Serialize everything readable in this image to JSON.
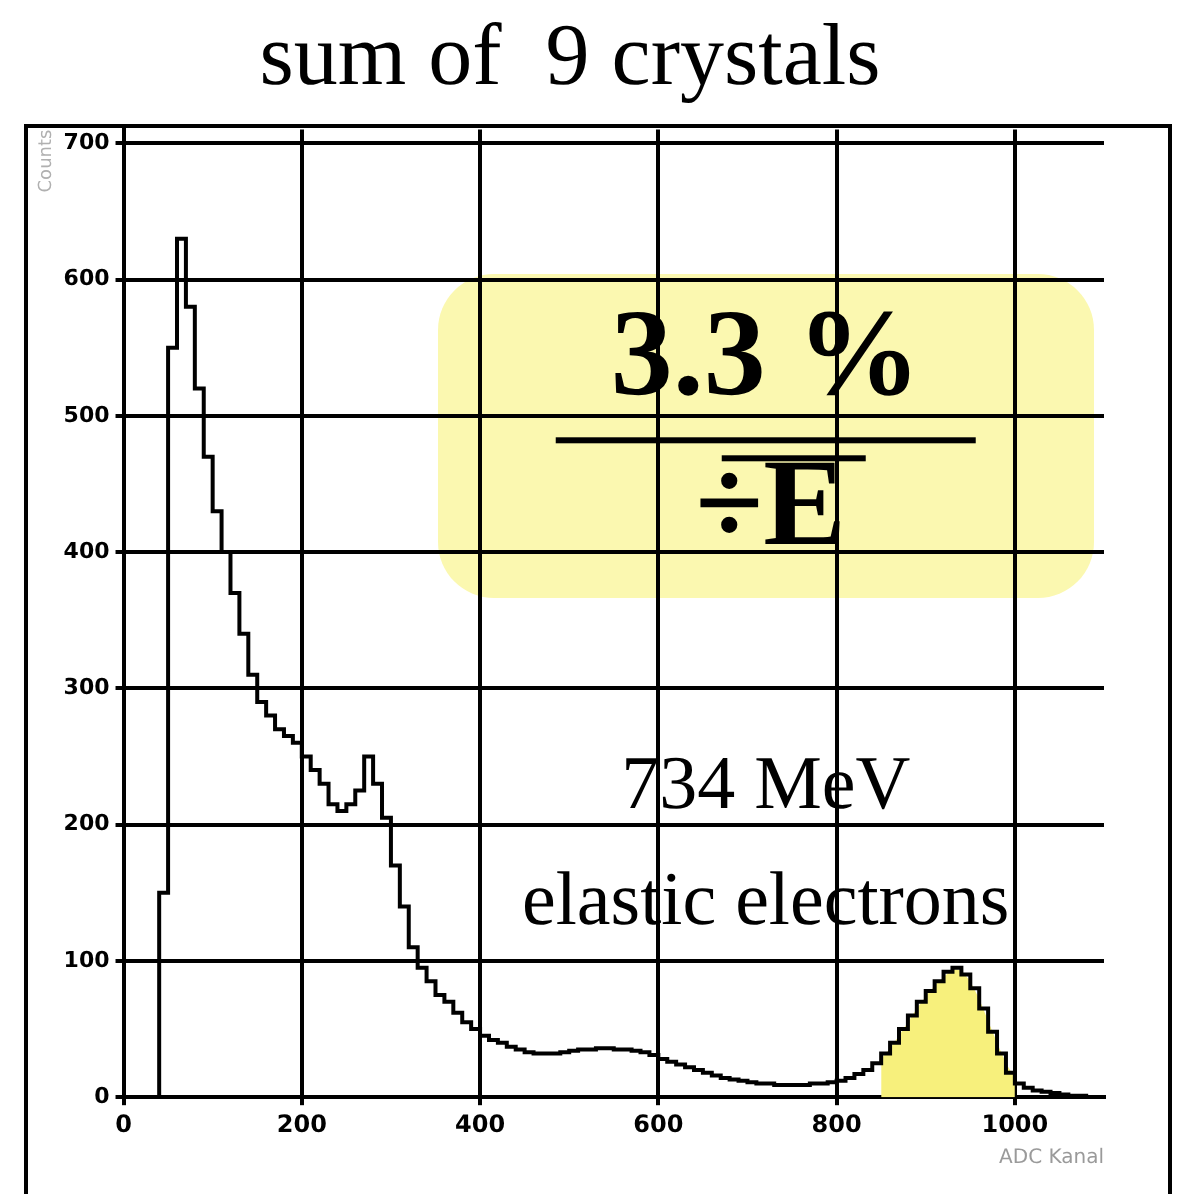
{
  "chart_data": {
    "type": "histogram",
    "title": "sum of  9 crystals",
    "xlabel": "ADC Kanal",
    "ylabel": "Counts",
    "bins": [
      0,
      10,
      20,
      30,
      40,
      50,
      60,
      70,
      80,
      90,
      100,
      110,
      120,
      130,
      140,
      150,
      160,
      170,
      180,
      190,
      200,
      210,
      220,
      230,
      240,
      250,
      260,
      270,
      280,
      290,
      300,
      310,
      320,
      330,
      340,
      350,
      360,
      370,
      380,
      390,
      400,
      410,
      420,
      430,
      440,
      450,
      460,
      470,
      480,
      490,
      500,
      510,
      520,
      530,
      540,
      550,
      560,
      570,
      580,
      590,
      600,
      610,
      620,
      630,
      640,
      650,
      660,
      670,
      680,
      690,
      700,
      710,
      720,
      730,
      740,
      750,
      760,
      770,
      780,
      790,
      800,
      810,
      820,
      830,
      840,
      850,
      860,
      870,
      880,
      890,
      900,
      910,
      920,
      930,
      940,
      950,
      960,
      970,
      980,
      990,
      1000,
      1010,
      1020,
      1030,
      1040,
      1050,
      1060,
      1070,
      1080,
      1090,
      1100
    ],
    "series": [
      {
        "color": "#000000",
        "values": [
          0,
          0,
          0,
          0,
          150,
          550,
          630,
          580,
          520,
          470,
          430,
          400,
          370,
          340,
          310,
          290,
          280,
          270,
          265,
          260,
          250,
          240,
          230,
          215,
          210,
          215,
          225,
          250,
          230,
          205,
          170,
          140,
          110,
          95,
          85,
          75,
          70,
          62,
          55,
          50,
          45,
          42,
          40,
          37,
          35,
          33,
          32,
          32,
          32,
          33,
          34,
          35,
          35,
          36,
          36,
          35,
          35,
          34,
          33,
          31,
          28,
          26,
          24,
          22,
          20,
          18,
          16,
          14,
          13,
          12,
          11,
          10,
          10,
          9,
          9,
          9,
          9,
          10,
          10,
          11,
          12,
          14,
          17,
          20,
          25,
          32,
          40,
          50,
          60,
          70,
          78,
          85,
          92,
          95,
          90,
          80,
          65,
          48,
          32,
          18,
          10,
          7,
          5,
          4,
          3,
          2,
          1,
          1,
          0,
          0
        ]
      },
      {
        "type": "area",
        "color": "#f7f07c",
        "x": [
          850,
          860,
          870,
          880,
          890,
          900,
          910,
          920,
          930,
          940,
          950,
          960,
          970,
          980,
          990,
          1000
        ],
        "values": [
          28,
          36,
          45,
          55,
          65,
          74,
          82,
          88,
          94,
          93,
          85,
          72,
          56,
          40,
          25,
          14
        ]
      }
    ],
    "xlim": [
      0,
      1100
    ],
    "ylim": [
      0,
      710
    ],
    "xticks": [
      0,
      200,
      400,
      600,
      800,
      1000
    ],
    "yticks": [
      0,
      100,
      200,
      300,
      400,
      500,
      600,
      700
    ],
    "grid": true,
    "annotations": [
      "3.3 %",
      "÷E",
      "734 MeV",
      "elastic electrons"
    ]
  }
}
